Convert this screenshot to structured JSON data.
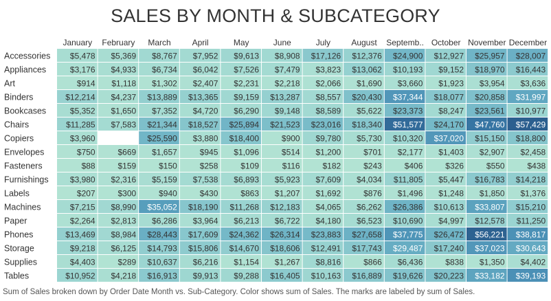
{
  "chart_data": {
    "type": "heatmap",
    "title": "SALES BY MONTH & SUBCATEGORY",
    "caption": "Sum of Sales broken down by Order Date Month vs. Sub-Category.  Color shows sum of Sales.  The marks are labeled by sum of Sales.",
    "columns": [
      "January",
      "February",
      "March",
      "April",
      "May",
      "June",
      "July",
      "August",
      "Septemb..",
      "October",
      "November",
      "December"
    ],
    "rows": [
      "Accessories",
      "Appliances",
      "Art",
      "Binders",
      "Bookcases",
      "Chairs",
      "Copiers",
      "Envelopes",
      "Fasteners",
      "Furnishings",
      "Labels",
      "Machines",
      "Paper",
      "Phones",
      "Storage",
      "Supplies",
      "Tables"
    ],
    "values": [
      [
        5478,
        5369,
        8767,
        7952,
        9613,
        8908,
        17126,
        12376,
        24900,
        12927,
        25957,
        28007
      ],
      [
        3176,
        4933,
        6734,
        6042,
        7526,
        7479,
        3823,
        13062,
        10193,
        9152,
        18970,
        16443
      ],
      [
        914,
        1118,
        1302,
        2407,
        2231,
        2218,
        2066,
        1690,
        3660,
        1923,
        3954,
        3636
      ],
      [
        12214,
        4237,
        13889,
        13365,
        9159,
        13287,
        8557,
        20430,
        37344,
        18077,
        20858,
        31997
      ],
      [
        5352,
        1650,
        7352,
        4720,
        6290,
        9148,
        8589,
        5622,
        23373,
        8247,
        23561,
        10977
      ],
      [
        11285,
        7583,
        21344,
        18527,
        25894,
        21523,
        23016,
        18340,
        51577,
        24170,
        47760,
        57429
      ],
      [
        3960,
        null,
        25590,
        3880,
        18400,
        900,
        9780,
        5730,
        10320,
        37020,
        15150,
        18800
      ],
      [
        750,
        669,
        1657,
        945,
        1096,
        514,
        1200,
        701,
        2177,
        1403,
        2907,
        2458
      ],
      [
        88,
        159,
        150,
        258,
        109,
        116,
        182,
        243,
        406,
        326,
        550,
        438
      ],
      [
        3980,
        2316,
        5159,
        7538,
        6893,
        5923,
        7609,
        4034,
        11805,
        5447,
        16783,
        14218
      ],
      [
        207,
        300,
        940,
        430,
        863,
        1207,
        1692,
        876,
        1496,
        1248,
        1850,
        1376
      ],
      [
        7215,
        8990,
        35052,
        18190,
        11268,
        12183,
        4065,
        6262,
        26386,
        10613,
        33807,
        15210
      ],
      [
        2264,
        2813,
        6286,
        3964,
        6213,
        6722,
        4180,
        6523,
        10690,
        4997,
        12578,
        11250
      ],
      [
        13469,
        8984,
        28443,
        17609,
        24362,
        26314,
        23883,
        27658,
        37775,
        26472,
        56221,
        38817
      ],
      [
        9218,
        6125,
        14793,
        15806,
        14670,
        18606,
        12491,
        17743,
        29487,
        17240,
        37023,
        30643
      ],
      [
        4403,
        289,
        10637,
        6216,
        1154,
        1267,
        8816,
        866,
        6436,
        838,
        1350,
        4402
      ],
      [
        10952,
        4218,
        16913,
        9913,
        9288,
        16405,
        10163,
        16889,
        19626,
        20223,
        33182,
        39193
      ]
    ],
    "color_scale": {
      "min_value": 0,
      "max_value": 57429,
      "colors": [
        "#b2e3d3",
        "#a3dad2",
        "#8ccace",
        "#74b8c8",
        "#5ea5c0",
        "#468ab3",
        "#34709f",
        "#2c5f8f"
      ]
    },
    "label_threshold_white": 29000
  }
}
